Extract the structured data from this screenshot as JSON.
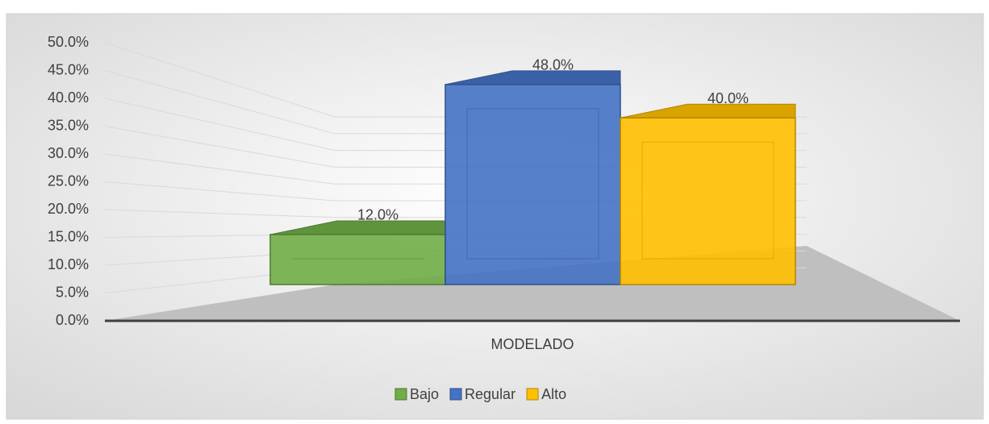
{
  "chart_data": {
    "type": "bar3d",
    "categories": [
      "MODELADO"
    ],
    "series": [
      {
        "name": "Bajo",
        "color": "#70ad47",
        "values": [
          12
        ],
        "value_labels": [
          "12.0%"
        ]
      },
      {
        "name": "Regular",
        "color": "#4472c4",
        "values": [
          48
        ],
        "value_labels": [
          "48.0%"
        ]
      },
      {
        "name": "Alto",
        "color": "#ffc000",
        "values": [
          40
        ],
        "value_labels": [
          "40.0%"
        ]
      }
    ],
    "ylim": [
      0,
      50
    ],
    "yticks": [
      {
        "value": 0,
        "label": "0.0%"
      },
      {
        "value": 5,
        "label": "5.0%"
      },
      {
        "value": 10,
        "label": "10.0%"
      },
      {
        "value": 15,
        "label": "15.0%"
      },
      {
        "value": 20,
        "label": "20.0%"
      },
      {
        "value": 25,
        "label": "25.0%"
      },
      {
        "value": 30,
        "label": "30.0%"
      },
      {
        "value": 35,
        "label": "35.0%"
      },
      {
        "value": 40,
        "label": "40.0%"
      },
      {
        "value": 45,
        "label": "45.0%"
      },
      {
        "value": 50,
        "label": "50.0%"
      }
    ],
    "grid": true,
    "legend": "bottom"
  }
}
